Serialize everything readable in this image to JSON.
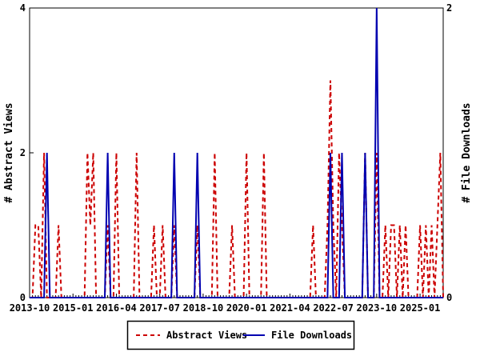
{
  "chart_data": {
    "type": "line",
    "title": "",
    "grid": false,
    "legend_position": "bottom-center-boxed",
    "x_range": {
      "start": "2013-10",
      "end": "2025-09"
    },
    "x_tick_labels": [
      "2013-10",
      "2015-01",
      "2016-04",
      "2017-07",
      "2018-10",
      "2020-01",
      "2021-04",
      "2022-07",
      "2023-10",
      "2025-01"
    ],
    "x_tick_interval_months": 15,
    "left_axis": {
      "label": "# Abstract Views",
      "min": 0,
      "max": 4,
      "ticks": [
        0,
        2,
        4
      ]
    },
    "right_axis": {
      "label": "# File Downloads",
      "min": 0,
      "max": 2,
      "ticks": [
        0,
        2
      ]
    },
    "axis_color": "#000000",
    "background_color": "#ffffff",
    "series": [
      {
        "name": "Abstract Views",
        "color": "#cc0000",
        "style": "dashed",
        "axis": "left",
        "points": {
          "2013-12": 1,
          "2014-01": 1,
          "2014-03": 2,
          "2014-08": 1,
          "2015-06": 2,
          "2015-07": 1,
          "2015-08": 2,
          "2016-01": 1,
          "2016-04": 2,
          "2016-11": 2,
          "2017-05": 1,
          "2017-08": 1,
          "2017-12": 1,
          "2018-08": 1,
          "2019-02": 2,
          "2019-08": 1,
          "2020-01": 2,
          "2020-07": 2,
          "2021-12": 1,
          "2022-05": 1,
          "2022-06": 3,
          "2022-07": 1,
          "2022-09": 2,
          "2022-10": 1,
          "2023-06": 2,
          "2023-10": 2,
          "2024-01": 1,
          "2024-03": 1,
          "2024-04": 1,
          "2024-06": 1,
          "2024-08": 1,
          "2025-01": 1,
          "2025-03": 1,
          "2025-05": 1,
          "2025-07": 1,
          "2025-08": 2
        }
      },
      {
        "name": "File Downloads",
        "color": "#0000b0",
        "style": "solid",
        "axis": "right",
        "points": {
          "2014-04": 1,
          "2016-01": 1,
          "2017-12": 1,
          "2018-08": 1,
          "2022-06": 1,
          "2022-10": 1,
          "2023-06": 1,
          "2023-10": 2
        }
      }
    ]
  }
}
